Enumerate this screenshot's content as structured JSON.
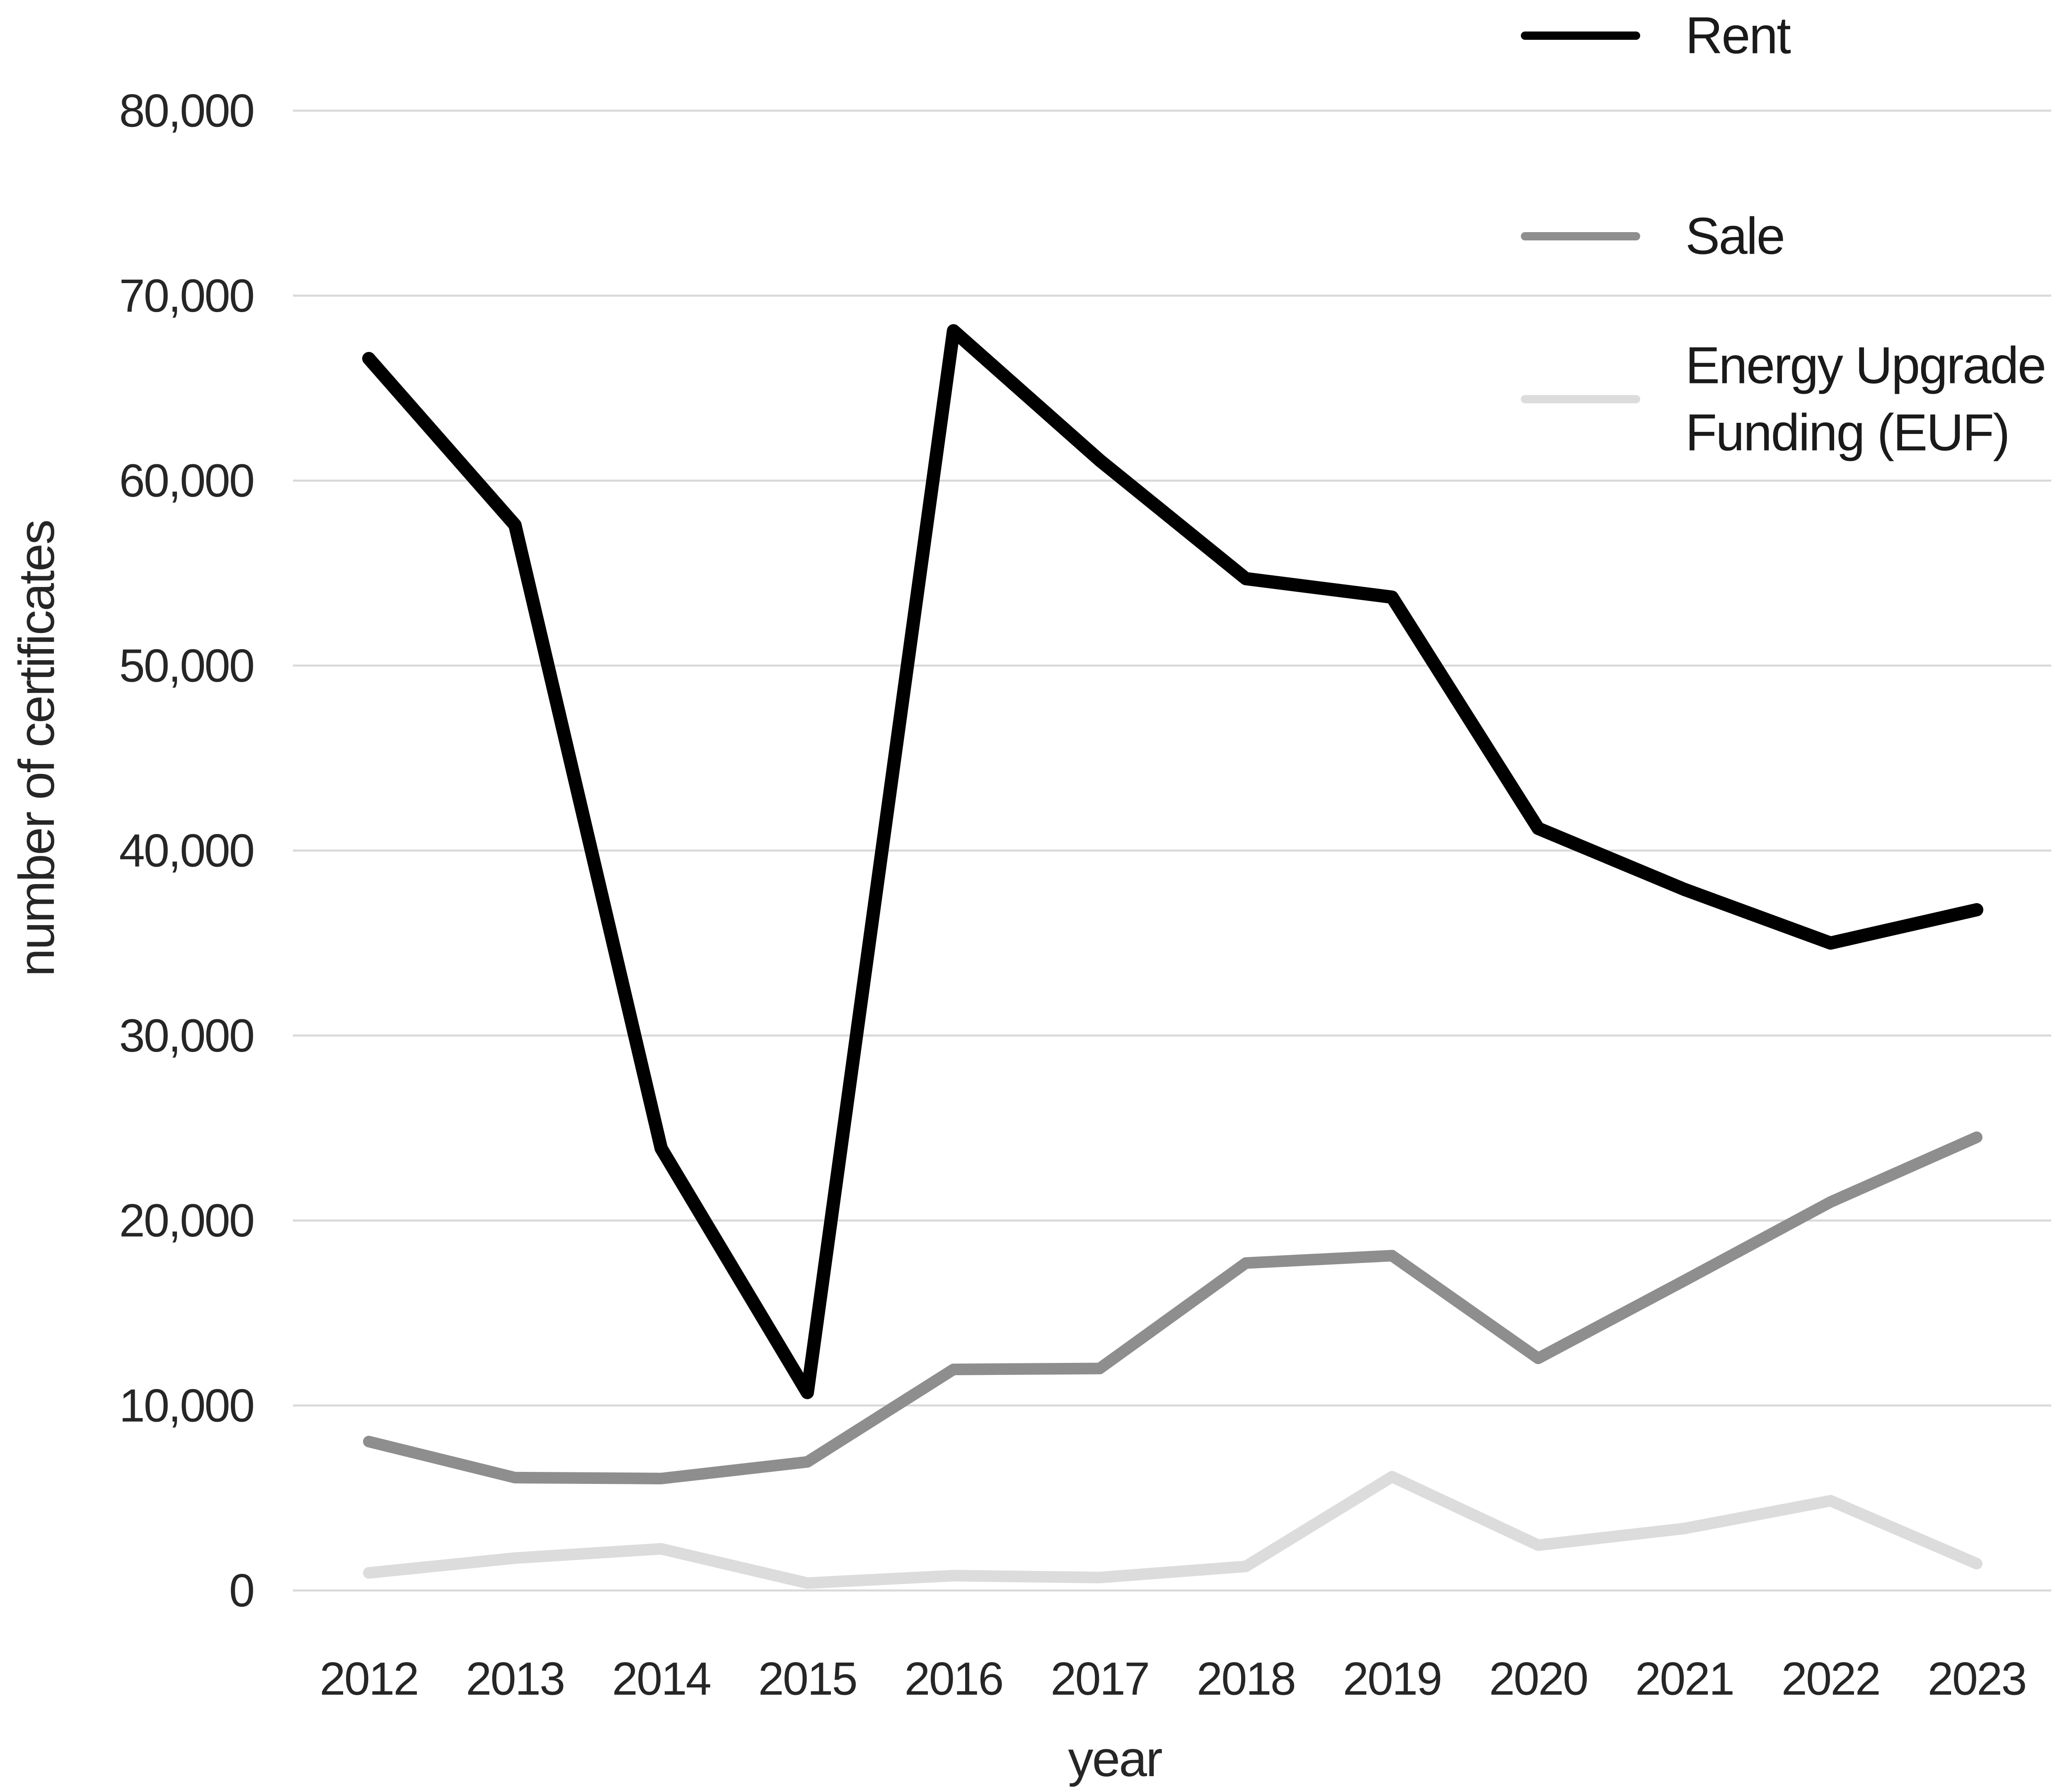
{
  "chart_data": {
    "type": "line",
    "title": "",
    "xlabel": "year",
    "ylabel": "number of certificates",
    "x": [
      2012,
      2013,
      2014,
      2015,
      2016,
      2017,
      2018,
      2019,
      2020,
      2021,
      2022,
      2023
    ],
    "x_tick_labels": [
      "2012",
      "2013",
      "2014",
      "2015",
      "2016",
      "2017",
      "2018",
      "2019",
      "2020",
      "2021",
      "2022",
      "2023"
    ],
    "ylim": [
      0,
      80000
    ],
    "ytick_step": 10000,
    "y_tick_labels": [
      "0",
      "10,000",
      "20,000",
      "30,000",
      "40,000",
      "50,000",
      "60,000",
      "70,000",
      "80,000"
    ],
    "grid": "horizontal",
    "legend_position": "top-right",
    "series": [
      {
        "name": "Rent",
        "label_lines": [
          "Rent"
        ],
        "color": "#000000",
        "stroke_width": 32,
        "values": [
          66600,
          57600,
          23900,
          10700,
          68100,
          61100,
          54700,
          53700,
          41200,
          37900,
          35000,
          36800
        ]
      },
      {
        "name": "Sale",
        "label_lines": [
          "Sale"
        ],
        "color": "#8e8e8e",
        "stroke_width": 28,
        "values": [
          8050,
          6100,
          6050,
          6950,
          11950,
          12000,
          17700,
          18100,
          12550,
          16750,
          21000,
          24500
        ]
      },
      {
        "name": "Energy Upgrade Funding (EUF)",
        "label_lines": [
          "Energy Upgrade",
          "Funding (EUF)"
        ],
        "color": "#dcdcdc",
        "stroke_width": 28,
        "values": [
          950,
          1750,
          2250,
          400,
          800,
          700,
          1300,
          6150,
          2450,
          3350,
          4850,
          1450
        ]
      }
    ],
    "colors": {
      "grid": "#d9d9d9",
      "text": "#262626",
      "background": "#ffffff"
    }
  }
}
